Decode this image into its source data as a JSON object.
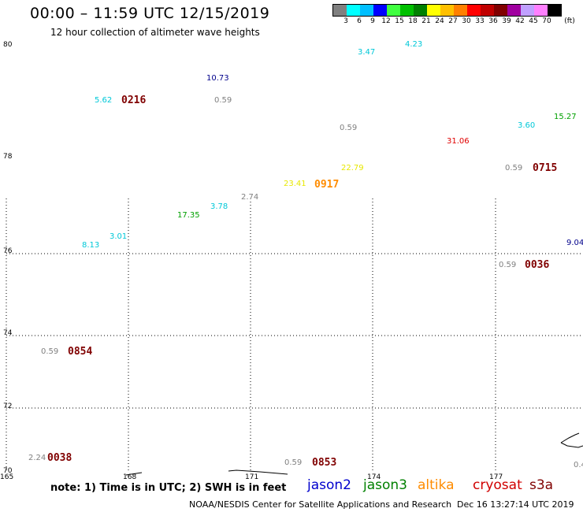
{
  "title": "00:00 – 11:59 UTC 12/15/2019",
  "subtitle": "12 hour collection of altimeter wave heights",
  "colorbar": {
    "colors": [
      "#808080",
      "#00ffff",
      "#00bfff",
      "#0000ff",
      "#40ff40",
      "#00c000",
      "#008000",
      "#ffff00",
      "#ffc000",
      "#ff8000",
      "#ff0000",
      "#c00000",
      "#800000",
      "#a000a0",
      "#c0a0ff",
      "#ff80ff",
      "#000000"
    ],
    "labels": [
      "3",
      "6",
      "9",
      "12",
      "15",
      "18",
      "21",
      "24",
      "27",
      "30",
      "33",
      "36",
      "39",
      "42",
      "45",
      "70",
      "(ft)"
    ]
  },
  "axes": {
    "y_labels": [
      "80",
      "78",
      "76",
      "74",
      "72",
      "70"
    ],
    "x_labels": [
      "165",
      "168",
      "171",
      "174",
      "177"
    ]
  },
  "observations": [
    {
      "value": "4.23",
      "color": "#00c8d8"
    },
    {
      "value": "3.47",
      "color": "#00c8d8"
    },
    {
      "value": "10.73",
      "color": "#00008b"
    },
    {
      "value": "5.62",
      "color": "#00c8d8"
    },
    {
      "value": "0.59",
      "color": "#808080"
    },
    {
      "value": "15.27",
      "color": "#00a000"
    },
    {
      "value": "3.60",
      "color": "#00c8d8"
    },
    {
      "value": "0.59",
      "color": "#808080"
    },
    {
      "value": "31.06",
      "color": "#e00000"
    },
    {
      "value": "22.79",
      "color": "#e8e800"
    },
    {
      "value": "0.59",
      "color": "#808080"
    },
    {
      "value": "23.41",
      "color": "#e8e800"
    },
    {
      "value": "2.74",
      "color": "#808080"
    },
    {
      "value": "3.78",
      "color": "#00c8d8"
    },
    {
      "value": "17.35",
      "color": "#00a000"
    },
    {
      "value": "3.01",
      "color": "#00c8d8"
    },
    {
      "value": "8.13",
      "color": "#00c8d8"
    },
    {
      "value": "9.04",
      "color": "#00008b"
    },
    {
      "value": "0.59",
      "color": "#808080"
    },
    {
      "value": "0.59",
      "color": "#808080"
    },
    {
      "value": "2.24",
      "color": "#808080"
    },
    {
      "value": "0.59",
      "color": "#808080"
    },
    {
      "value": "0.4",
      "color": "#808080"
    }
  ],
  "times": [
    {
      "label": "0216",
      "color": "#800000"
    },
    {
      "label": "0715",
      "color": "#800000"
    },
    {
      "label": "0917",
      "color": "#ff8c00"
    },
    {
      "label": "0036",
      "color": "#800000"
    },
    {
      "label": "0854",
      "color": "#800000"
    },
    {
      "label": "0038",
      "color": "#800000"
    },
    {
      "label": "0853",
      "color": "#800000"
    }
  ],
  "note": "note: 1) Time is in UTC; 2) SWH is in feet",
  "satellites": [
    {
      "name": "jason2",
      "color": "#0000cd"
    },
    {
      "name": "jason3",
      "color": "#008000"
    },
    {
      "name": "altika",
      "color": "#ff8c00"
    },
    {
      "name": "cryosat",
      "color": "#d00000"
    },
    {
      "name": "s3a",
      "color": "#800000"
    }
  ],
  "credit": "NOAA/NESDIS Center for Satellite Applications and Research",
  "timestamp": "Dec 16 13:27:14 UTC 2019"
}
